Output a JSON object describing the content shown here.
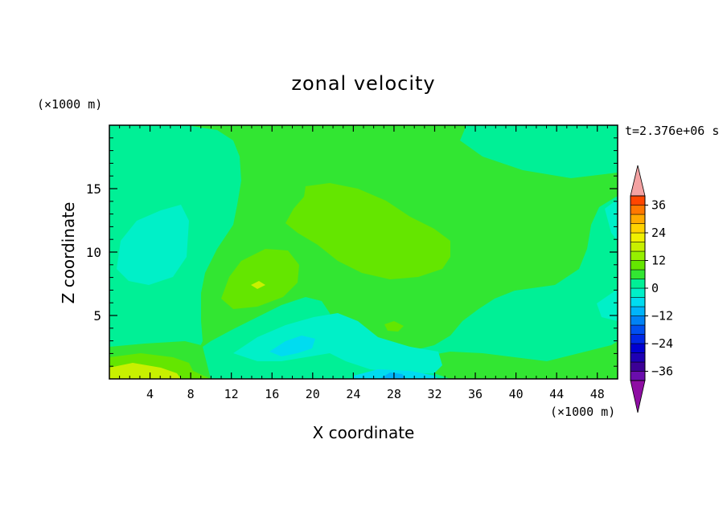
{
  "chart_data": {
    "type": "heatmap",
    "title": "zonal velocity",
    "xlabel": "X coordinate",
    "ylabel": "Z coordinate",
    "x_unit": "(×1000 m)",
    "y_unit": "(×1000 m)",
    "time_label": "t=2.376e+06 s",
    "xlim": [
      0,
      50
    ],
    "ylim": [
      0,
      20
    ],
    "x_ticks": [
      4,
      8,
      12,
      16,
      20,
      24,
      28,
      32,
      36,
      40,
      44,
      48
    ],
    "y_ticks": [
      5,
      10,
      15
    ],
    "colorbar": {
      "levels": [
        -40,
        -36,
        -32,
        -28,
        -24,
        -20,
        -16,
        -12,
        -8,
        -4,
        0,
        4,
        8,
        12,
        16,
        20,
        24,
        28,
        32,
        36,
        40
      ],
      "labels": [
        36,
        24,
        12,
        0,
        -12,
        -24,
        -36
      ],
      "colors": [
        "#6a0dad",
        "#3c0096",
        "#1e00b4",
        "#0000d2",
        "#0028e6",
        "#0050f0",
        "#0082f5",
        "#00b4fa",
        "#00dcf0",
        "#00f0c8",
        "#00f096",
        "#32e632",
        "#64e600",
        "#96f000",
        "#c8f000",
        "#f0f000",
        "#ffd200",
        "#ffaa00",
        "#ff7800",
        "#ff4600",
        "#f01e1e"
      ],
      "under_color": "#8e0da3",
      "over_color": "#f4a2a2"
    }
  }
}
